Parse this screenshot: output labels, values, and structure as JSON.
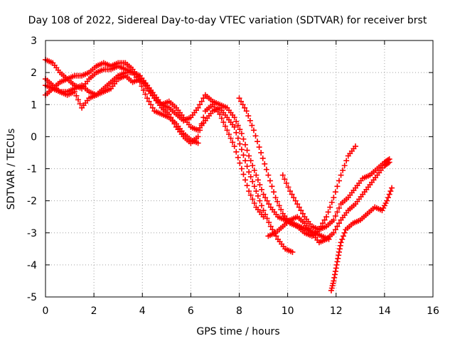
{
  "chart_data": {
    "type": "scatter",
    "title": "Day 108 of 2022, Sidereal Day-to-day VTEC variation (SDTVAR) for receiver brst",
    "xlabel": "GPS time / hours",
    "ylabel": "SDTVAR / TECUs",
    "xlim": [
      0,
      16
    ],
    "ylim": [
      -5,
      3
    ],
    "x_ticks": [
      "0",
      "2",
      "4",
      "6",
      "8",
      "10",
      "12",
      "14",
      "16"
    ],
    "y_ticks": [
      "3",
      "2",
      "1",
      "0",
      "-1",
      "-2",
      "-3",
      "-4",
      "-5"
    ],
    "grid": true,
    "marker": "+",
    "marker_color": "#ff0000",
    "series": [
      {
        "x": [
          0.0,
          0.3,
          0.6,
          0.9,
          1.2,
          1.5,
          1.8,
          2.1,
          2.4,
          2.7,
          3.0,
          3.3,
          3.6,
          3.9,
          4.2,
          4.5,
          4.8,
          5.1,
          5.4,
          5.7,
          6.0,
          6.3,
          6.6,
          6.9,
          7.2,
          7.5,
          7.8,
          8.1,
          8.4,
          8.7,
          9.0,
          9.3,
          9.6,
          9.9,
          10.2,
          10.5,
          10.8,
          11.1,
          11.4,
          11.7
        ],
        "values": [
          2.4,
          2.3,
          2.0,
          1.8,
          1.9,
          1.9,
          2.0,
          2.2,
          2.3,
          2.2,
          2.3,
          2.3,
          2.1,
          1.8,
          1.5,
          1.2,
          1.0,
          0.9,
          0.7,
          0.5,
          0.6,
          0.9,
          1.3,
          1.1,
          1.0,
          0.9,
          0.6,
          0.1,
          -0.6,
          -1.2,
          -1.8,
          -2.2,
          -2.5,
          -2.6,
          -2.7,
          -2.8,
          -2.9,
          -3.0,
          -3.1,
          -3.2
        ]
      },
      {
        "x": [
          0.0,
          0.3,
          0.6,
          0.9,
          1.2,
          1.5,
          1.8,
          2.1,
          2.4,
          2.7,
          3.0,
          3.3,
          3.6,
          3.9,
          4.2,
          4.5,
          4.8,
          5.1,
          5.4,
          5.7,
          6.0,
          6.3,
          6.6,
          6.9,
          7.2,
          7.5,
          7.8,
          8.1,
          8.4,
          8.7,
          9.0,
          9.3,
          9.6,
          9.9,
          10.2
        ],
        "values": [
          1.3,
          1.5,
          1.7,
          1.8,
          1.6,
          1.5,
          1.8,
          2.0,
          2.1,
          2.1,
          2.2,
          2.1,
          2.0,
          1.9,
          1.6,
          1.3,
          1.0,
          1.1,
          0.9,
          0.6,
          0.3,
          0.2,
          0.5,
          0.8,
          0.9,
          0.6,
          0.3,
          -0.4,
          -1.1,
          -1.7,
          -2.3,
          -2.8,
          -3.2,
          -3.5,
          -3.6
        ]
      },
      {
        "x": [
          0.0,
          0.3,
          0.6,
          0.9,
          1.2,
          1.5,
          1.8,
          2.1,
          2.4,
          2.7,
          3.0,
          3.3,
          3.6,
          3.9,
          4.2,
          4.5,
          4.8,
          5.1,
          5.4,
          5.7,
          6.0,
          6.3,
          6.6,
          6.9,
          7.2,
          7.5,
          7.8,
          8.1,
          8.4,
          8.7,
          9.0
        ],
        "values": [
          1.6,
          1.5,
          1.4,
          1.3,
          1.4,
          0.9,
          1.2,
          1.3,
          1.4,
          1.5,
          1.8,
          1.9,
          1.7,
          1.8,
          1.6,
          1.2,
          0.9,
          0.7,
          0.3,
          0.0,
          -0.2,
          0.0,
          0.8,
          1.0,
          0.7,
          0.2,
          -0.3,
          -1.0,
          -1.7,
          -2.2,
          -2.5
        ]
      },
      {
        "x": [
          0.0,
          0.3,
          0.6,
          0.9,
          1.2,
          1.5,
          1.8,
          2.1,
          2.4,
          2.7,
          3.0,
          3.3,
          3.6,
          3.9,
          4.2,
          4.5,
          4.8,
          5.1,
          5.4,
          5.7,
          6.0,
          6.3
        ],
        "values": [
          1.8,
          1.6,
          1.4,
          1.4,
          1.5,
          1.6,
          1.4,
          1.3,
          1.5,
          1.7,
          1.9,
          2.0,
          2.0,
          1.7,
          1.2,
          0.8,
          0.7,
          0.6,
          0.4,
          0.1,
          -0.1,
          -0.2
        ]
      },
      {
        "x": [
          8.0,
          8.3,
          8.6,
          8.9,
          9.2,
          9.5,
          9.8,
          10.1,
          10.4,
          10.7,
          11.0,
          11.3,
          11.6,
          11.9,
          12.2,
          12.5,
          12.8
        ],
        "values": [
          1.2,
          0.8,
          0.2,
          -0.5,
          -1.2,
          -1.9,
          -2.4,
          -2.7,
          -2.8,
          -3.0,
          -3.1,
          -2.9,
          -2.5,
          -1.9,
          -1.2,
          -0.6,
          -0.3
        ]
      },
      {
        "x": [
          9.2,
          9.5,
          9.8,
          10.1,
          10.4,
          10.7,
          11.0,
          11.3,
          11.6,
          11.9,
          12.2,
          12.5,
          12.8,
          13.1,
          13.4,
          13.7,
          14.0,
          14.2
        ],
        "values": [
          -3.1,
          -3.0,
          -2.8,
          -2.6,
          -2.5,
          -2.7,
          -3.0,
          -3.3,
          -3.2,
          -3.0,
          -2.6,
          -2.3,
          -2.1,
          -1.8,
          -1.5,
          -1.2,
          -0.9,
          -0.8
        ]
      },
      {
        "x": [
          9.8,
          10.1,
          10.4,
          10.7,
          11.0,
          11.3,
          11.6,
          11.9,
          12.2,
          12.5,
          12.8,
          13.1,
          13.4,
          13.7,
          14.0,
          14.2
        ],
        "values": [
          -1.2,
          -1.7,
          -2.1,
          -2.5,
          -2.8,
          -2.9,
          -2.8,
          -2.6,
          -2.1,
          -1.9,
          -1.6,
          -1.3,
          -1.2,
          -1.0,
          -0.8,
          -0.7
        ]
      },
      {
        "x": [
          11.8,
          11.9,
          12.0,
          12.1,
          12.2,
          12.4,
          12.7,
          13.0,
          13.3,
          13.6,
          13.9,
          14.1,
          14.3
        ],
        "values": [
          -4.8,
          -4.5,
          -4.1,
          -3.7,
          -3.3,
          -2.9,
          -2.7,
          -2.6,
          -2.4,
          -2.2,
          -2.3,
          -2.0,
          -1.6
        ]
      }
    ]
  }
}
